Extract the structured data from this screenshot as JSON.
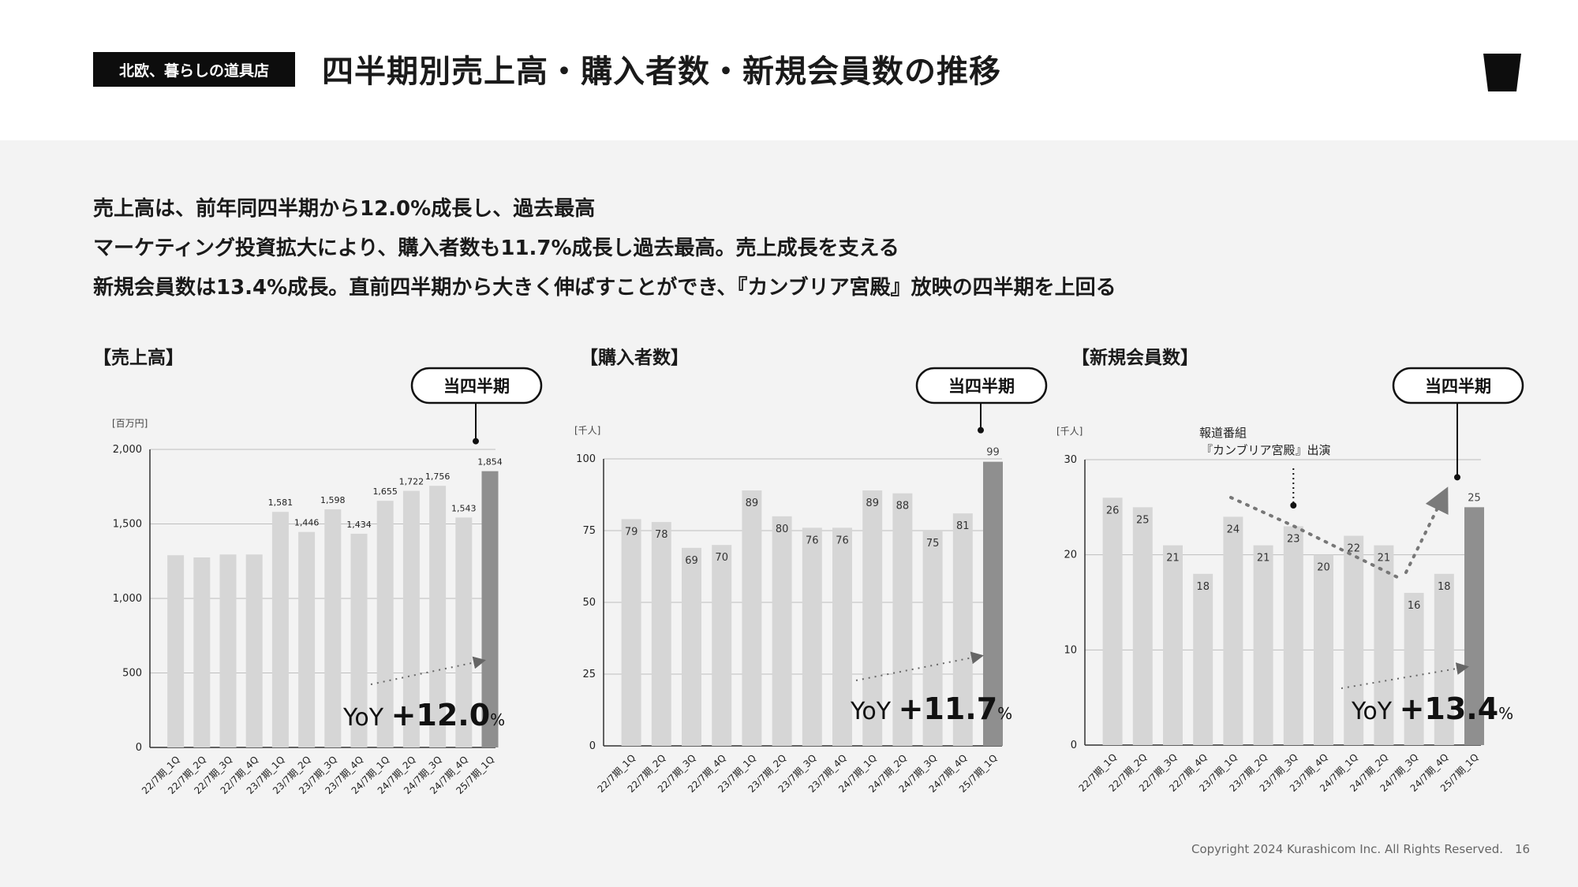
{
  "header": {
    "brand": "北欧、暮らしの道具店",
    "title": "四半期別売上高・購入者数・新規会員数の推移"
  },
  "summary": {
    "line1": "売上高は、前年同四半期から12.0%成長し、過去最高",
    "line2": "マーケティング投資拡大により、購入者数も11.7%成長し過去最高。売上成長を支える",
    "line3": "新規会員数は13.4%成長。直前四半期から大きく伸ばすことができ、『カンブリア宮殿』放映の四半期を上回る"
  },
  "colors": {
    "bar": "#d6d6d6",
    "highlight": "#8f8f8f",
    "axis": "#333333",
    "grid": "#bdbdbd"
  },
  "chart_data": [
    {
      "type": "bar",
      "title": "【売上高】",
      "ylabel": "[百万円]",
      "ylim": [
        0,
        2000
      ],
      "yticks": [
        "0",
        "500",
        "1,000",
        "1,500",
        "2,000"
      ],
      "categories": [
        "22/7期_1Q",
        "22/7期_2Q",
        "22/7期_3Q",
        "22/7期_4Q",
        "23/7期_1Q",
        "23/7期_2Q",
        "23/7期_3Q",
        "23/7期_4Q",
        "24/7期_1Q",
        "24/7期_2Q",
        "24/7期_3Q",
        "24/7期_4Q",
        "25/7期_1Q"
      ],
      "values": [
        1290,
        1275,
        1295,
        1295,
        1581,
        1446,
        1598,
        1434,
        1655,
        1722,
        1756,
        1543,
        1854
      ],
      "data_labels": [
        "",
        "",
        "",
        "",
        "1,581",
        "1,446",
        "1,598",
        "1,434",
        "1,655",
        "1,722",
        "1,756",
        "1,543",
        "1,854"
      ],
      "callout": "当四半期",
      "yoy_prefix": "YoY",
      "yoy_value": "+12.0",
      "yoy_unit": "%"
    },
    {
      "type": "bar",
      "title": "【購入者数】",
      "ylabel": "[千人]",
      "ylim": [
        0,
        100
      ],
      "yticks": [
        "0",
        "25",
        "50",
        "75",
        "100"
      ],
      "categories": [
        "22/7期_1Q",
        "22/7期_2Q",
        "22/7期_3Q",
        "22/7期_4Q",
        "23/7期_1Q",
        "23/7期_2Q",
        "23/7期_3Q",
        "23/7期_4Q",
        "24/7期_1Q",
        "24/7期_2Q",
        "24/7期_3Q",
        "24/7期_4Q",
        "25/7期_1Q"
      ],
      "values": [
        79,
        78,
        69,
        70,
        89,
        80,
        76,
        76,
        89,
        88,
        75,
        81,
        99
      ],
      "data_labels": [
        "79",
        "78",
        "69",
        "70",
        "89",
        "80",
        "76",
        "76",
        "89",
        "88",
        "75",
        "81",
        "99"
      ],
      "callout": "当四半期",
      "yoy_prefix": "YoY",
      "yoy_value": "+11.7",
      "yoy_unit": "%"
    },
    {
      "type": "bar",
      "title": "【新規会員数】",
      "ylabel": "[千人]",
      "ylim": [
        0,
        30
      ],
      "yticks": [
        "0",
        "10",
        "20",
        "30"
      ],
      "categories": [
        "22/7期_1Q",
        "22/7期_2Q",
        "22/7期_3Q",
        "22/7期_4Q",
        "23/7期_1Q",
        "23/7期_2Q",
        "23/7期_3Q",
        "23/7期_4Q",
        "24/7期_1Q",
        "24/7期_2Q",
        "24/7期_3Q",
        "24/7期_4Q",
        "25/7期_1Q"
      ],
      "values": [
        26,
        25,
        21,
        18,
        24,
        21,
        23,
        20,
        22,
        21,
        16,
        18,
        25
      ],
      "data_labels": [
        "26",
        "25",
        "21",
        "18",
        "24",
        "21",
        "23",
        "20",
        "22",
        "21",
        "16",
        "18",
        "25"
      ],
      "callout": "当四半期",
      "annotation_line1": "報道番組",
      "annotation_line2": "『カンブリア宮殿』出演",
      "yoy_prefix": "YoY",
      "yoy_value": "+13.4",
      "yoy_unit": "%"
    }
  ],
  "footer": {
    "copyright": "Copyright 2024 Kurashicom Inc. All Rights Reserved.",
    "page": "16"
  }
}
